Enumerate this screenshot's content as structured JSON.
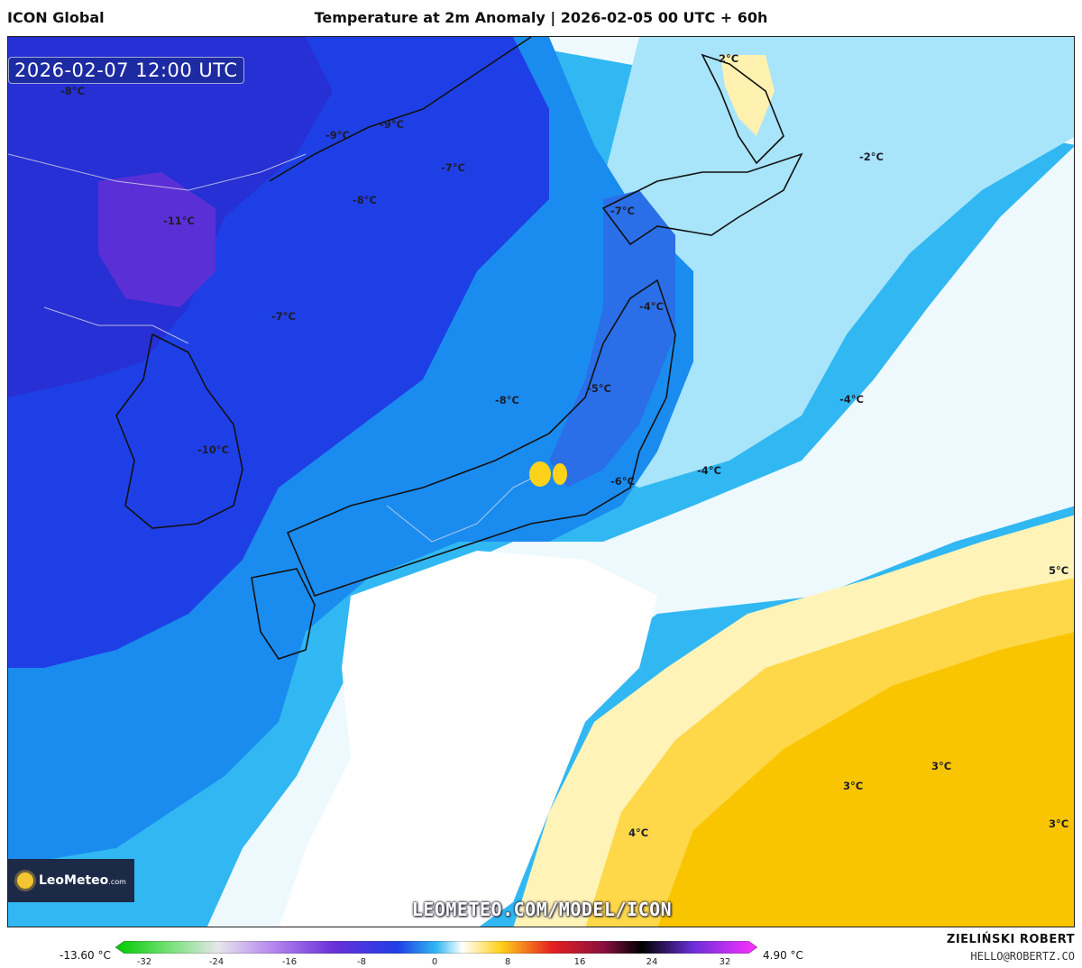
{
  "header": {
    "model_name": "ICON Global",
    "title": "Temperature at 2m Anomaly | 2026-02-05 00 UTC + 60h"
  },
  "map": {
    "valid_time": "2026-02-07 12:00 UTC",
    "temperature_labels": [
      {
        "text": "-8°C"
      },
      {
        "text": "-9°C"
      },
      {
        "text": "-9°C"
      },
      {
        "text": "-7°C"
      },
      {
        "text": "-8°C"
      },
      {
        "text": "2°C"
      },
      {
        "text": "-2°C"
      },
      {
        "text": "-11°C"
      },
      {
        "text": "-7°C"
      },
      {
        "text": "-7°C"
      },
      {
        "text": "-4°C"
      },
      {
        "text": "-5°C"
      },
      {
        "text": "-8°C"
      },
      {
        "text": "-4°C"
      },
      {
        "text": "-10°C"
      },
      {
        "text": "-4°C"
      },
      {
        "text": "-6°C"
      },
      {
        "text": "5°C"
      },
      {
        "text": "3°C"
      },
      {
        "text": "3°C"
      },
      {
        "text": "3°C"
      },
      {
        "text": "4°C"
      }
    ],
    "logo_text": "LeoMeteo",
    "logo_suffix": ".com",
    "watermark": "LEOMETEO.COM/MODEL/ICON"
  },
  "legend": {
    "min_label": "-13.60 °C",
    "max_label": "4.90 °C",
    "ticks": [
      "-32",
      "-24",
      "-16",
      "-8",
      "0",
      "8",
      "16",
      "24",
      "32"
    ],
    "unit": "°C"
  },
  "footer": {
    "author": "ZIELIŃSKI ROBERT",
    "email": "HELLO@ROBERTZ.CO"
  },
  "colors": {
    "deep_purple": "#6a2fd8",
    "deep_blue": "#1f3fe6",
    "mid_blue": "#1a8cf0",
    "light_blue": "#31b8f2",
    "pale_blue": "#8fdcf8",
    "near_zero": "#ffffff",
    "pale_yellow": "#fff2b0",
    "yellow": "#ffd21a",
    "orange_yellow": "#f7c000"
  }
}
